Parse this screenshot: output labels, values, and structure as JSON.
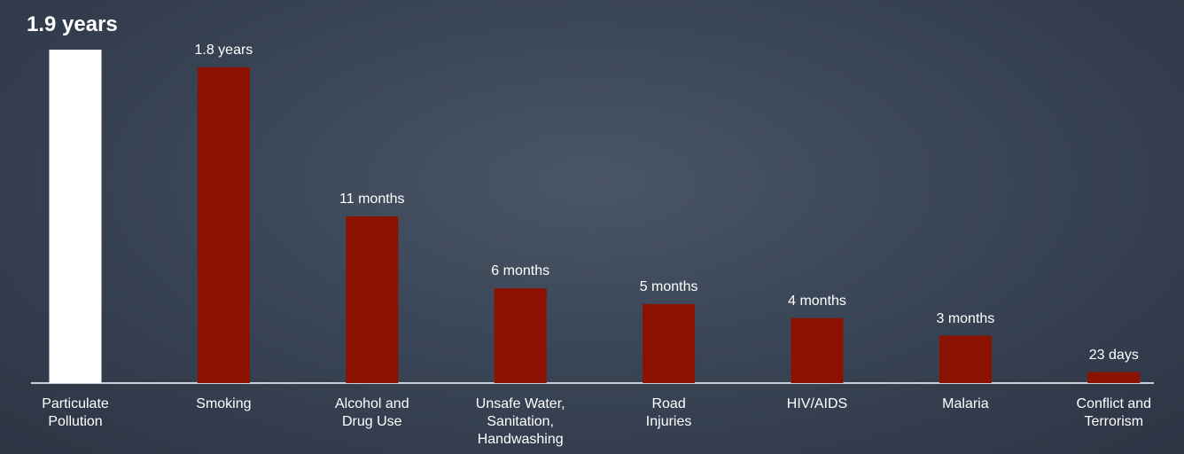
{
  "chart_data": {
    "type": "bar",
    "categories": [
      "Particulate Pollution",
      "Smoking",
      "Alcohol and Drug Use",
      "Unsafe Water, Sanitation, Handwashing",
      "Road Injuries",
      "HIV/AIDS",
      "Malaria",
      "Conflict and Terrorism"
    ],
    "values": [
      1.9,
      1.8,
      0.95,
      0.54,
      0.45,
      0.37,
      0.27,
      0.063
    ],
    "value_labels": [
      "1.9 years",
      "1.8 years",
      "11 months",
      "6 months",
      "5 months",
      "4 months",
      "3 months",
      "23 days"
    ],
    "colors": [
      "#ffffff",
      "#8b1200",
      "#8b1200",
      "#8b1200",
      "#8b1200",
      "#8b1200",
      "#8b1200",
      "#8b1200"
    ]
  }
}
